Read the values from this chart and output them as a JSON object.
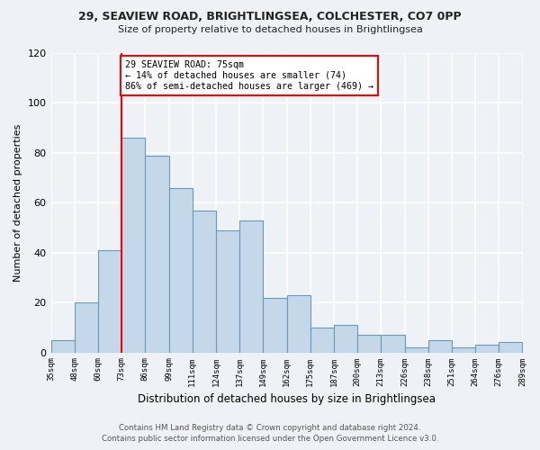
{
  "title1": "29, SEAVIEW ROAD, BRIGHTLINGSEA, COLCHESTER, CO7 0PP",
  "title2": "Size of property relative to detached houses in Brightlingsea",
  "xlabel": "Distribution of detached houses by size in Brightlingsea",
  "ylabel": "Number of detached properties",
  "bin_labels": [
    "35sqm",
    "48sqm",
    "60sqm",
    "73sqm",
    "86sqm",
    "99sqm",
    "111sqm",
    "124sqm",
    "137sqm",
    "149sqm",
    "162sqm",
    "175sqm",
    "187sqm",
    "200sqm",
    "213sqm",
    "226sqm",
    "238sqm",
    "251sqm",
    "264sqm",
    "276sqm",
    "289sqm"
  ],
  "bar_heights": [
    5,
    20,
    41,
    86,
    79,
    66,
    57,
    49,
    53,
    22,
    23,
    10,
    11,
    7,
    7,
    2,
    5,
    2,
    3,
    4
  ],
  "bar_color": "#c5d8ea",
  "bar_edge_color": "#6699bb",
  "annotation_title": "29 SEAVIEW ROAD: 75sqm",
  "annotation_line1": "← 14% of detached houses are smaller (74)",
  "annotation_line2": "86% of semi-detached houses are larger (469) →",
  "vline_x_index": 3,
  "ylim": [
    0,
    120
  ],
  "yticks": [
    0,
    20,
    40,
    60,
    80,
    100,
    120
  ],
  "footnote1": "Contains HM Land Registry data © Crown copyright and database right 2024.",
  "footnote2": "Contains public sector information licensed under the Open Government Licence v3.0.",
  "background_color": "#eef2f7",
  "grid_color": "#ffffff"
}
